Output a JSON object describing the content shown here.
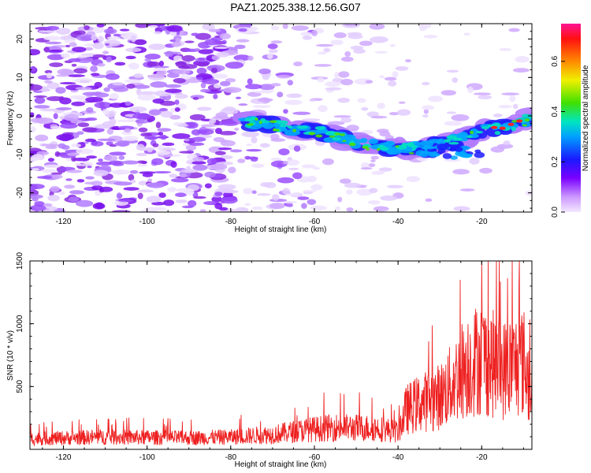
{
  "title": "PAZ1.2025.338.12.56.G07",
  "chart_data": [
    {
      "type": "heatmap",
      "name": "spectrogram",
      "title": "PAZ1.2025.338.12.56.G07",
      "xlabel": "Height of straight line (km)",
      "ylabel": "Frequency (Hz)",
      "xlim": [
        -128,
        -8
      ],
      "ylim": [
        -25,
        24
      ],
      "xticks": [
        -120,
        -100,
        -80,
        -60,
        -40,
        -20
      ],
      "xtick_labels": [
        "-120",
        "-100",
        "-80",
        "-60",
        "-40",
        "-20"
      ],
      "yticks": [
        -20,
        -10,
        0,
        10,
        20
      ],
      "ytick_labels": [
        "-20",
        "-10",
        "0",
        "10",
        "20"
      ],
      "colorbar": {
        "label": "Normalized spectral amplitude",
        "range": [
          0.0,
          0.75
        ],
        "ticks": [
          0.0,
          0.2,
          0.4,
          0.6
        ],
        "tick_labels": [
          "0.0",
          "0.2",
          "0.4",
          "0.6"
        ]
      },
      "ridge": {
        "x": [
          -77,
          -72,
          -66,
          -60,
          -55,
          -50,
          -45,
          -40,
          -35,
          -30,
          -25,
          -20,
          -15,
          -10,
          -8
        ],
        "y": [
          -1.5,
          -2,
          -3,
          -4,
          -5.5,
          -7,
          -8,
          -8.5,
          -8.5,
          -7.5,
          -6,
          -4,
          -3,
          -1.5,
          -0.5
        ]
      }
    },
    {
      "type": "line",
      "name": "snr",
      "xlabel": "Height of straight line (km)",
      "ylabel": "SNR (10 * v/v)",
      "xlim": [
        -128,
        -8
      ],
      "ylim": [
        0,
        1500
      ],
      "xticks": [
        -120,
        -100,
        -80,
        -60,
        -40,
        -20
      ],
      "xtick_labels": [
        "-120",
        "-100",
        "-80",
        "-60",
        "-40",
        "-20"
      ],
      "yticks": [
        500,
        1000,
        1500
      ],
      "ytick_labels": [
        "500",
        "1000",
        "1500"
      ],
      "color": "#ee2020",
      "envelope": {
        "x": [
          -128,
          -110,
          -90,
          -80,
          -70,
          -62,
          -55,
          -45,
          -40,
          -38,
          -35,
          -30,
          -27,
          -24,
          -20,
          -15,
          -10,
          -8
        ],
        "y": [
          120,
          140,
          130,
          140,
          170,
          220,
          250,
          240,
          200,
          450,
          520,
          600,
          750,
          950,
          1050,
          900,
          1000,
          650
        ]
      }
    }
  ]
}
